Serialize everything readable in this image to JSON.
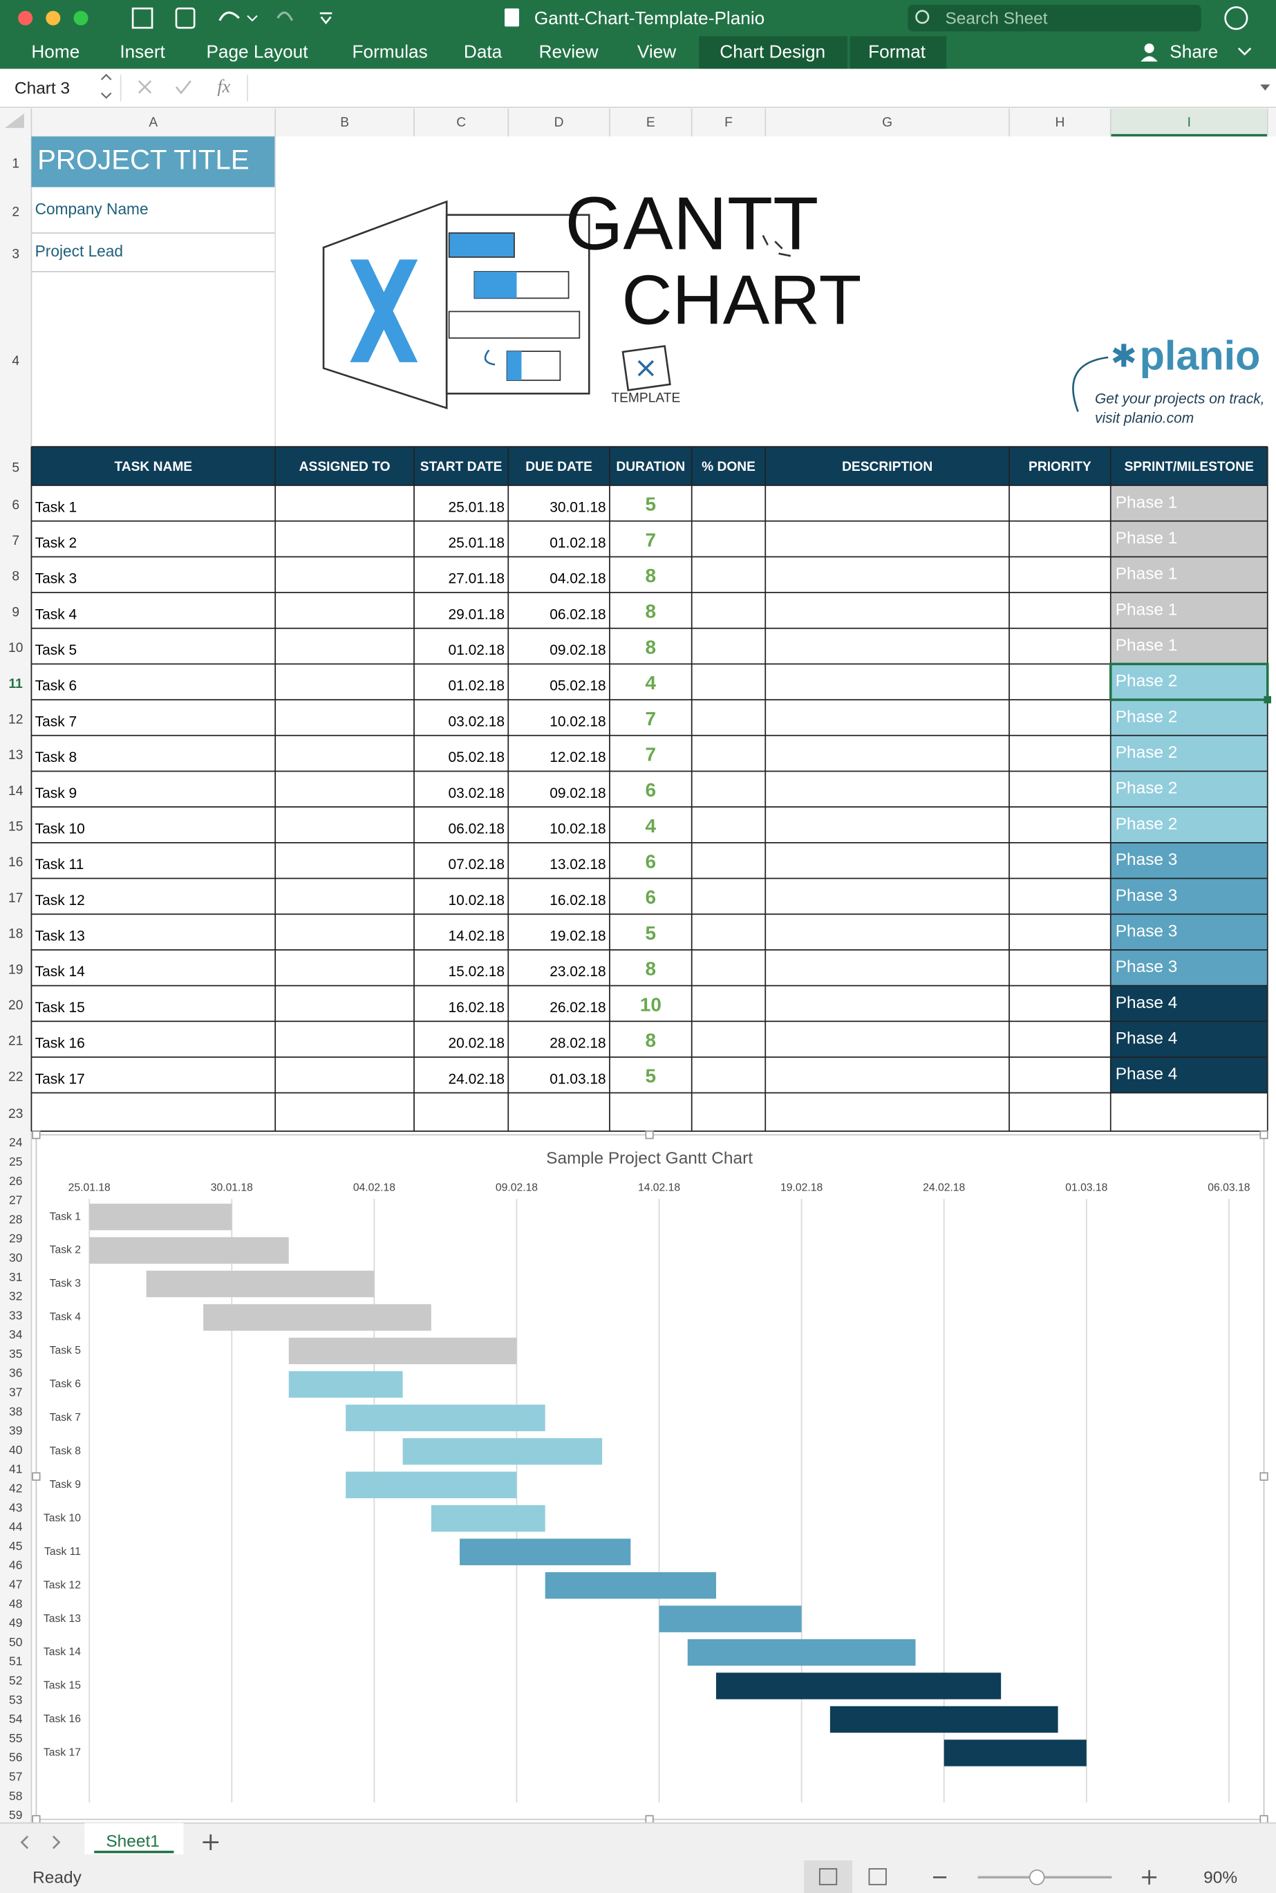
{
  "window": {
    "title": "Gantt-Chart-Template-Planio",
    "search_placeholder": "Search Sheet"
  },
  "ribbon": {
    "tabs": [
      "Home",
      "Insert",
      "Page Layout",
      "Formulas",
      "Data",
      "Review",
      "View",
      "Chart Design",
      "Format"
    ],
    "share": "Share"
  },
  "formula_bar": {
    "name_box": "Chart 3",
    "fx": "fx"
  },
  "columns": [
    "A",
    "B",
    "C",
    "D",
    "E",
    "F",
    "G",
    "H",
    "I"
  ],
  "row_numbers": [
    1,
    2,
    3,
    4,
    5,
    6,
    7,
    8,
    9,
    10,
    11,
    12,
    13,
    14,
    15,
    16,
    17,
    18,
    19,
    20,
    21,
    22,
    23,
    24,
    25,
    26,
    27,
    28,
    29,
    30,
    31,
    32,
    33,
    34,
    35,
    36,
    37,
    38,
    39,
    40,
    41,
    42,
    43,
    44,
    45,
    46,
    47,
    48,
    49,
    50,
    51,
    52,
    53,
    54,
    55,
    56,
    57,
    58,
    59
  ],
  "sheet": {
    "project_title": "PROJECT TITLE",
    "company_name": "Company Name",
    "project_lead": "Project Lead",
    "logo": {
      "gantt": "GANTT",
      "chart": "CHART",
      "template": "TEMPLATE",
      "brand": "planio",
      "tagline": [
        "Get your projects on track,",
        "visit planio.com"
      ]
    },
    "header": [
      "TASK NAME",
      "ASSIGNED TO",
      "START DATE",
      "DUE DATE",
      "DURATION",
      "% DONE",
      "DESCRIPTION",
      "PRIORITY",
      "SPRINT/MILESTONE"
    ],
    "tasks": [
      {
        "name": "Task 1",
        "start": "25.01.18",
        "due": "30.01.18",
        "duration": 5,
        "phase": "Phase 1",
        "phase_color": "#c8c8c8"
      },
      {
        "name": "Task 2",
        "start": "25.01.18",
        "due": "01.02.18",
        "duration": 7,
        "phase": "Phase 1",
        "phase_color": "#c8c8c8"
      },
      {
        "name": "Task 3",
        "start": "27.01.18",
        "due": "04.02.18",
        "duration": 8,
        "phase": "Phase 1",
        "phase_color": "#c8c8c8"
      },
      {
        "name": "Task 4",
        "start": "29.01.18",
        "due": "06.02.18",
        "duration": 8,
        "phase": "Phase 1",
        "phase_color": "#c8c8c8"
      },
      {
        "name": "Task 5",
        "start": "01.02.18",
        "due": "09.02.18",
        "duration": 8,
        "phase": "Phase 1",
        "phase_color": "#c8c8c8"
      },
      {
        "name": "Task 6",
        "start": "01.02.18",
        "due": "05.02.18",
        "duration": 4,
        "phase": "Phase 2",
        "phase_color": "#92cddc"
      },
      {
        "name": "Task 7",
        "start": "03.02.18",
        "due": "10.02.18",
        "duration": 7,
        "phase": "Phase 2",
        "phase_color": "#92cddc"
      },
      {
        "name": "Task 8",
        "start": "05.02.18",
        "due": "12.02.18",
        "duration": 7,
        "phase": "Phase 2",
        "phase_color": "#92cddc"
      },
      {
        "name": "Task 9",
        "start": "03.02.18",
        "due": "09.02.18",
        "duration": 6,
        "phase": "Phase 2",
        "phase_color": "#92cddc"
      },
      {
        "name": "Task 10",
        "start": "06.02.18",
        "due": "10.02.18",
        "duration": 4,
        "phase": "Phase 2",
        "phase_color": "#92cddc"
      },
      {
        "name": "Task 11",
        "start": "07.02.18",
        "due": "13.02.18",
        "duration": 6,
        "phase": "Phase 3",
        "phase_color": "#5ba3c0"
      },
      {
        "name": "Task 12",
        "start": "10.02.18",
        "due": "16.02.18",
        "duration": 6,
        "phase": "Phase 3",
        "phase_color": "#5ba3c0"
      },
      {
        "name": "Task 13",
        "start": "14.02.18",
        "due": "19.02.18",
        "duration": 5,
        "phase": "Phase 3",
        "phase_color": "#5ba3c0"
      },
      {
        "name": "Task 14",
        "start": "15.02.18",
        "due": "23.02.18",
        "duration": 8,
        "phase": "Phase 3",
        "phase_color": "#5ba3c0"
      },
      {
        "name": "Task 15",
        "start": "16.02.18",
        "due": "26.02.18",
        "duration": 10,
        "phase": "Phase 4",
        "phase_color": "#0e3d57"
      },
      {
        "name": "Task 16",
        "start": "20.02.18",
        "due": "28.02.18",
        "duration": 8,
        "phase": "Phase 4",
        "phase_color": "#0e3d57"
      },
      {
        "name": "Task 17",
        "start": "24.02.18",
        "due": "01.03.18",
        "duration": 5,
        "phase": "Phase 4",
        "phase_color": "#0e3d57"
      }
    ]
  },
  "chart_data": {
    "type": "gantt",
    "title": "Sample Project Gantt Chart",
    "categories": [
      "Task 1",
      "Task 2",
      "Task 3",
      "Task 4",
      "Task 5",
      "Task 6",
      "Task 7",
      "Task 8",
      "Task 9",
      "Task 10",
      "Task 11",
      "Task 12",
      "Task 13",
      "Task 14",
      "Task 15",
      "Task 16",
      "Task 17"
    ],
    "start": [
      "25.01.18",
      "25.01.18",
      "27.01.18",
      "29.01.18",
      "01.02.18",
      "01.02.18",
      "03.02.18",
      "05.02.18",
      "03.02.18",
      "06.02.18",
      "07.02.18",
      "10.02.18",
      "14.02.18",
      "15.02.18",
      "16.02.18",
      "20.02.18",
      "24.02.18"
    ],
    "end": [
      "30.01.18",
      "01.02.18",
      "04.02.18",
      "06.02.18",
      "09.02.18",
      "05.02.18",
      "10.02.18",
      "12.02.18",
      "09.02.18",
      "10.02.18",
      "13.02.18",
      "16.02.18",
      "19.02.18",
      "23.02.18",
      "26.02.18",
      "28.02.18",
      "01.03.18"
    ],
    "colors": [
      "#c9c9c9",
      "#c9c9c9",
      "#c9c9c9",
      "#c9c9c9",
      "#c9c9c9",
      "#92cddc",
      "#92cddc",
      "#92cddc",
      "#92cddc",
      "#92cddc",
      "#5ba3c0",
      "#5ba3c0",
      "#5ba3c0",
      "#5ba3c0",
      "#0e3d57",
      "#0e3d57",
      "#0e3d57"
    ],
    "xlim": [
      "25.01.18",
      "06.03.18"
    ],
    "xticks": [
      "25.01.18",
      "30.01.18",
      "04.02.18",
      "09.02.18",
      "14.02.18",
      "19.02.18",
      "24.02.18",
      "01.03.18",
      "06.03.18"
    ],
    "grid": true
  },
  "sheet_tabs": [
    "Sheet1"
  ],
  "status": {
    "state": "Ready",
    "zoom": "90%"
  }
}
